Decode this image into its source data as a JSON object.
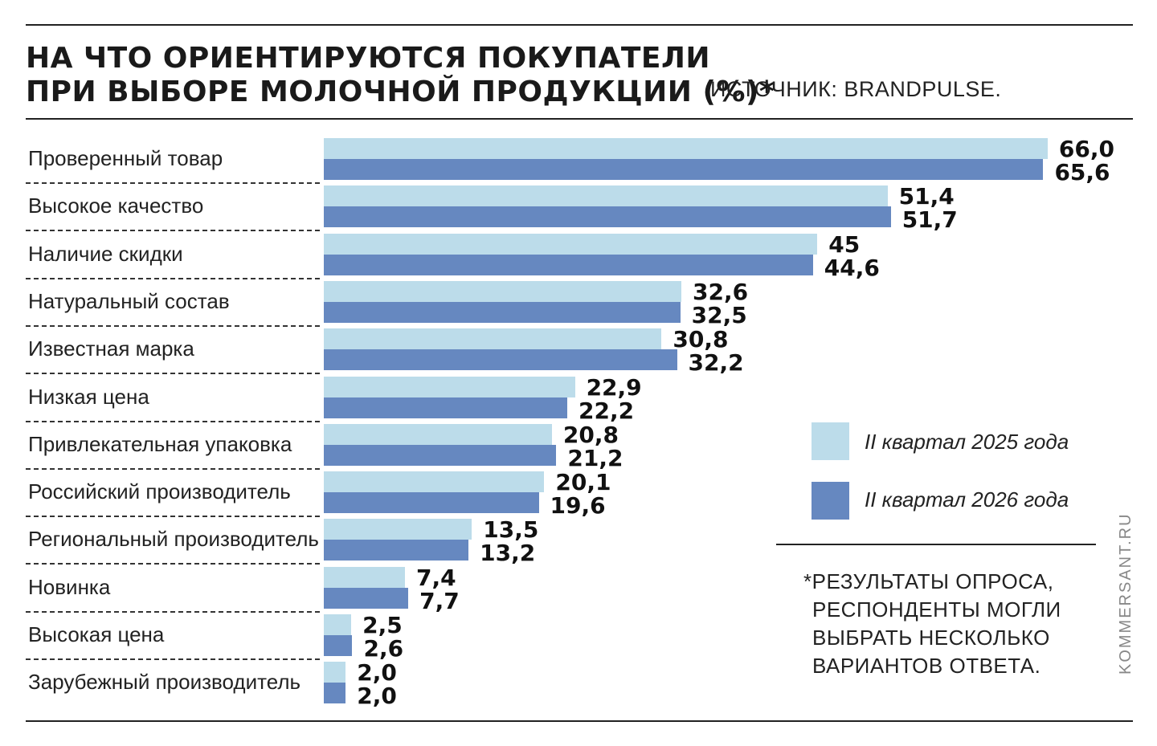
{
  "title_lines": [
    "НА ЧТО ОРИЕНТИРУЮТСЯ ПОКУПАТЕЛИ",
    "ПРИ ВЫБОРЕ МОЛОЧНОЙ ПРОДУКЦИИ (%)*"
  ],
  "source": "ИСТОЧНИК: BRANDPULSE.",
  "footnote_lines": [
    "*РЕЗУЛЬТАТЫ ОПРОСА,",
    "РЕСПОНДЕНТЫ МОГЛИ",
    "ВЫБРАТЬ НЕСКОЛЬКО",
    "ВАРИАНТОВ ОТВЕТА."
  ],
  "credit": "KOMMERSANT.RU",
  "colors": {
    "series_2025": "#bcdcea",
    "series_2026": "#6688c0"
  },
  "chart_data": {
    "type": "bar",
    "orientation": "horizontal",
    "categories": [
      "Проверенный товар",
      "Высокое качество",
      "Наличие скидки",
      "Натуральный состав",
      "Известная марка",
      "Низкая цена",
      "Привлекательная упаковка",
      "Российский производитель",
      "Региональный производитель",
      "Новинка",
      "Высокая цена",
      "Зарубежный производитель"
    ],
    "series": [
      {
        "name": "II квартал 2025 года",
        "color": "#bcdcea",
        "values": [
          66.0,
          51.4,
          45,
          32.6,
          30.8,
          22.9,
          20.8,
          20.1,
          13.5,
          7.4,
          2.5,
          2.0
        ],
        "labels": [
          "66,0",
          "51,4",
          "45",
          "32,6",
          "30,8",
          "22,9",
          "20,8",
          "20,1",
          "13,5",
          "7,4",
          "2,5",
          "2,0"
        ]
      },
      {
        "name": "II квартал 2026 года",
        "color": "#6688c0",
        "values": [
          65.6,
          51.7,
          44.6,
          32.5,
          32.2,
          22.2,
          21.2,
          19.6,
          13.2,
          7.7,
          2.6,
          2.0
        ],
        "labels": [
          "65,6",
          "51,7",
          "44,6",
          "32,5",
          "32,2",
          "22,2",
          "21,2",
          "19,6",
          "13,2",
          "7,7",
          "2,6",
          "2,0"
        ]
      }
    ],
    "legend_position": "right",
    "grid": false
  }
}
